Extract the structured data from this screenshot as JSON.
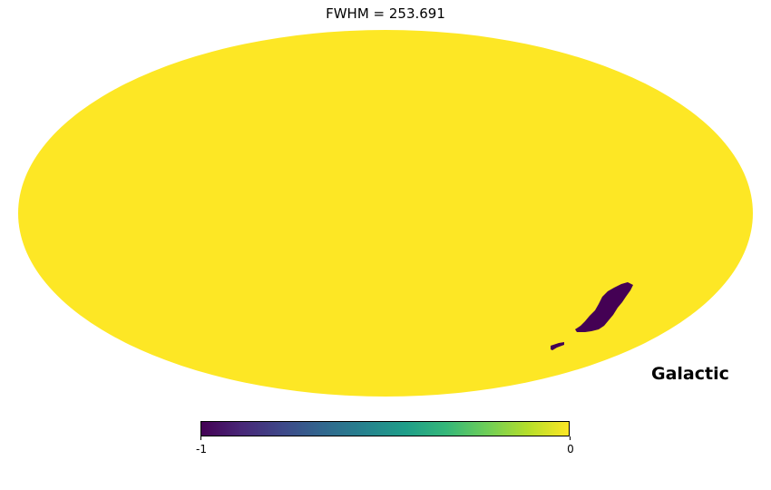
{
  "chart_data": {
    "type": "heatmap",
    "title": "FWHM = 253.691",
    "projection": "mollweide",
    "coord_label": "Galactic",
    "colormap": "viridis",
    "colorbar": {
      "min": -1,
      "max": 0,
      "tick_labels": [
        "-1",
        "0"
      ]
    },
    "background_value": 0,
    "masked_regions": [
      {
        "value": -1,
        "lon_deg": [
          -120,
          -150
        ],
        "lat_deg": [
          -38,
          -58
        ]
      },
      {
        "value": -1,
        "lon_deg": [
          -105,
          -112
        ],
        "lat_deg": [
          -68,
          -72
        ]
      }
    ],
    "colors": {
      "high": "#fde725",
      "low": "#440154"
    }
  }
}
